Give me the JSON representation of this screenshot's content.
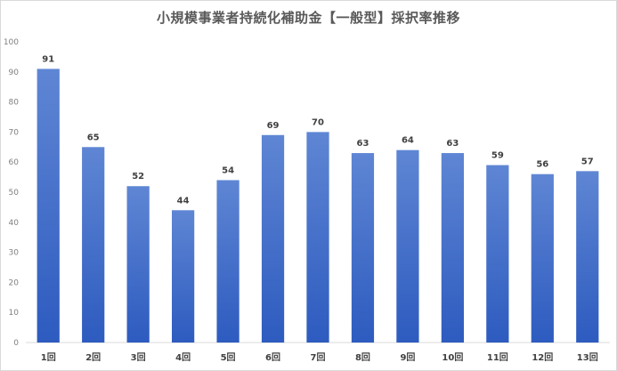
{
  "chart_data": {
    "type": "bar",
    "title": "小規模事業者持続化補助金【一般型】採択率推移",
    "categories": [
      "1回",
      "2回",
      "3回",
      "4回",
      "5回",
      "6回",
      "7回",
      "8回",
      "9回",
      "10回",
      "11回",
      "12回",
      "13回"
    ],
    "values": [
      91,
      65,
      52,
      44,
      54,
      69,
      70,
      63,
      64,
      63,
      59,
      56,
      57
    ],
    "ylim": [
      0,
      100
    ],
    "yticks": [
      0,
      10,
      20,
      30,
      40,
      50,
      60,
      70,
      80,
      90,
      100
    ],
    "grid": false,
    "legend": "none",
    "bar_color_top": "#5f86d4",
    "bar_color_bottom": "#2d5bbf"
  }
}
